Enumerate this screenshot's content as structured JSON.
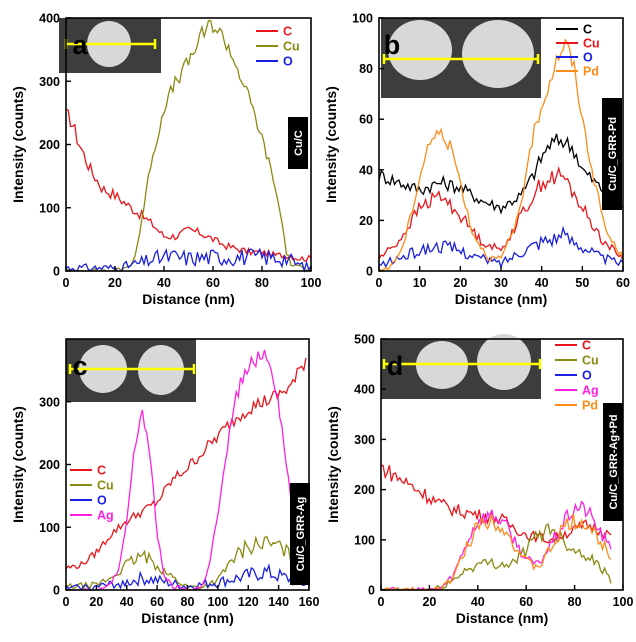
{
  "chart_data": [
    {
      "type": "line",
      "panel_label": "a",
      "side_label": "Cu/C",
      "xlabel": "Distance (nm)",
      "ylabel": "Intensity (counts)",
      "xlim": [
        0,
        100
      ],
      "ylim": [
        0,
        400
      ],
      "xticks": [
        0,
        20,
        40,
        60,
        80,
        100
      ],
      "yticks": [
        0,
        100,
        200,
        300,
        400
      ],
      "legend_position": "top-right",
      "colors": {
        "C": "#e8161b",
        "Cu": "#8a8a12",
        "O": "#1a20e0"
      },
      "series": [
        {
          "name": "C",
          "x": [
            0,
            2,
            5,
            10,
            15,
            20,
            25,
            30,
            35,
            40,
            45,
            50,
            55,
            60,
            65,
            70,
            75,
            80,
            85,
            90,
            95,
            100
          ],
          "values": [
            245,
            240,
            205,
            160,
            130,
            120,
            105,
            90,
            75,
            55,
            55,
            65,
            60,
            50,
            40,
            35,
            30,
            30,
            25,
            25,
            20,
            20
          ]
        },
        {
          "name": "Cu",
          "x": [
            0,
            10,
            20,
            25,
            28,
            30,
            33,
            35,
            38,
            40,
            45,
            50,
            55,
            58,
            60,
            65,
            70,
            75,
            80,
            85,
            88,
            90,
            92,
            95,
            100
          ],
          "values": [
            0,
            0,
            0,
            5,
            20,
            60,
            130,
            180,
            220,
            260,
            300,
            330,
            370,
            385,
            390,
            365,
            320,
            270,
            210,
            140,
            80,
            30,
            10,
            5,
            5
          ]
        },
        {
          "name": "O",
          "x": [
            0,
            10,
            20,
            25,
            30,
            35,
            40,
            45,
            50,
            60,
            70,
            80,
            90,
            95,
            100
          ],
          "values": [
            5,
            5,
            5,
            8,
            12,
            18,
            22,
            22,
            20,
            22,
            22,
            22,
            20,
            10,
            5
          ]
        }
      ]
    },
    {
      "type": "line",
      "panel_label": "b",
      "side_label": "Cu/C_GRR-Pd",
      "xlabel": "Distance (nm)",
      "ylabel": "Intensity (counts)",
      "xlim": [
        0,
        60
      ],
      "ylim": [
        0,
        100
      ],
      "xticks": [
        0,
        10,
        20,
        30,
        40,
        50,
        60
      ],
      "yticks": [
        0,
        20,
        40,
        60,
        80,
        100
      ],
      "legend_position": "top-right",
      "colors": {
        "C": "#000000",
        "Cu": "#e8161b",
        "O": "#1a20e0",
        "Pd": "#ff8c1a"
      },
      "series": [
        {
          "name": "C",
          "x": [
            0,
            5,
            10,
            15,
            20,
            25,
            30,
            35,
            38,
            40,
            42,
            45,
            48,
            50,
            55,
            60
          ],
          "values": [
            38,
            35,
            32,
            35,
            33,
            28,
            25,
            30,
            38,
            45,
            50,
            52,
            48,
            40,
            32,
            25
          ]
        },
        {
          "name": "Cu",
          "x": [
            0,
            5,
            10,
            15,
            20,
            25,
            30,
            35,
            40,
            45,
            50,
            55,
            60
          ],
          "values": [
            5,
            12,
            25,
            30,
            22,
            12,
            8,
            22,
            35,
            38,
            25,
            12,
            5
          ]
        },
        {
          "name": "O",
          "x": [
            0,
            5,
            10,
            15,
            20,
            25,
            30,
            35,
            40,
            45,
            50,
            55,
            60
          ],
          "values": [
            2,
            5,
            8,
            10,
            8,
            5,
            3,
            8,
            12,
            14,
            10,
            5,
            3
          ]
        },
        {
          "name": "Pd",
          "x": [
            0,
            3,
            6,
            9,
            12,
            15,
            18,
            20,
            23,
            27,
            30,
            33,
            36,
            38,
            40,
            42,
            44,
            46,
            48,
            50,
            53,
            56,
            60
          ],
          "values": [
            0,
            2,
            10,
            30,
            50,
            55,
            48,
            35,
            15,
            5,
            5,
            15,
            35,
            55,
            65,
            75,
            85,
            90,
            80,
            60,
            35,
            15,
            5
          ]
        }
      ]
    },
    {
      "type": "line",
      "panel_label": "c",
      "side_label": "Cu/C_GRR-Ag",
      "xlabel": "Distance (nm)",
      "ylabel": "Intensity (counts)",
      "xlim": [
        0,
        160
      ],
      "ylim": [
        0,
        400
      ],
      "xticks": [
        0,
        20,
        40,
        60,
        80,
        100,
        120,
        140,
        160
      ],
      "yticks": [
        0,
        100,
        200,
        300
      ],
      "legend_position": "center-left",
      "colors": {
        "C": "#e8161b",
        "Cu": "#8a8a12",
        "O": "#1a20e0",
        "Ag": "#ff20e0"
      },
      "series": [
        {
          "name": "C",
          "x": [
            0,
            10,
            20,
            30,
            40,
            50,
            60,
            70,
            80,
            90,
            100,
            110,
            120,
            130,
            140,
            150,
            158
          ],
          "values": [
            35,
            40,
            60,
            90,
            110,
            125,
            140,
            175,
            195,
            220,
            245,
            270,
            290,
            300,
            310,
            330,
            370
          ]
        },
        {
          "name": "Cu",
          "x": [
            0,
            20,
            30,
            40,
            50,
            60,
            70,
            80,
            90,
            100,
            110,
            120,
            130,
            140,
            150,
            158
          ],
          "values": [
            5,
            8,
            20,
            40,
            55,
            40,
            20,
            5,
            5,
            15,
            50,
            70,
            75,
            70,
            50,
            20
          ]
        },
        {
          "name": "O",
          "x": [
            0,
            20,
            40,
            50,
            60,
            80,
            100,
            120,
            130,
            140,
            150,
            158
          ],
          "values": [
            3,
            5,
            12,
            18,
            15,
            5,
            12,
            22,
            28,
            22,
            15,
            8
          ]
        },
        {
          "name": "Ag",
          "x": [
            0,
            25,
            35,
            40,
            45,
            50,
            55,
            60,
            65,
            70,
            80,
            90,
            95,
            100,
            105,
            110,
            115,
            120,
            125,
            130,
            135,
            140,
            145,
            150,
            155,
            158
          ],
          "values": [
            0,
            0,
            30,
            110,
            220,
            290,
            220,
            90,
            20,
            5,
            0,
            5,
            50,
            120,
            200,
            290,
            330,
            350,
            370,
            380,
            360,
            300,
            200,
            120,
            50,
            20
          ]
        }
      ]
    },
    {
      "type": "line",
      "panel_label": "d",
      "side_label": "Cu/C_GRR-Ag+Pd",
      "xlabel": "Distance (nm)",
      "ylabel": "Intensity (counts)",
      "xlim": [
        0,
        100
      ],
      "ylim": [
        0,
        500
      ],
      "xticks": [
        0,
        20,
        40,
        60,
        80,
        100
      ],
      "yticks": [
        0,
        100,
        200,
        300,
        400,
        500
      ],
      "legend_position": "top-right",
      "colors": {
        "C": "#e8161b",
        "Cu": "#8a8a12",
        "O": "#1a20e0",
        "Ag": "#ff20e0",
        "Pd": "#ff8c1a"
      },
      "series": [
        {
          "name": "C",
          "x": [
            0,
            5,
            10,
            15,
            20,
            25,
            30,
            35,
            40,
            45,
            50,
            55,
            60,
            65,
            70,
            75,
            80,
            85,
            90,
            95
          ],
          "values": [
            245,
            230,
            215,
            200,
            185,
            170,
            160,
            155,
            150,
            145,
            140,
            125,
            110,
            105,
            100,
            110,
            120,
            130,
            120,
            110
          ]
        },
        {
          "name": "Cu",
          "x": [
            0,
            10,
            20,
            25,
            30,
            35,
            40,
            45,
            50,
            55,
            60,
            65,
            70,
            75,
            80,
            85,
            90,
            95
          ],
          "values": [
            0,
            0,
            0,
            5,
            20,
            40,
            50,
            55,
            50,
            55,
            80,
            110,
            125,
            100,
            80,
            70,
            50,
            20
          ]
        },
        {
          "name": "Ag",
          "x": [
            0,
            20,
            25,
            30,
            35,
            40,
            45,
            50,
            55,
            60,
            65,
            70,
            75,
            80,
            85,
            90,
            95
          ],
          "values": [
            0,
            0,
            5,
            30,
            90,
            140,
            150,
            140,
            100,
            60,
            50,
            90,
            130,
            165,
            160,
            120,
            80
          ]
        },
        {
          "name": "Pd",
          "x": [
            0,
            20,
            25,
            30,
            35,
            40,
            45,
            50,
            55,
            60,
            65,
            70,
            75,
            80,
            85,
            90,
            95
          ],
          "values": [
            0,
            0,
            5,
            25,
            80,
            130,
            140,
            130,
            90,
            55,
            45,
            80,
            120,
            140,
            130,
            100,
            70
          ]
        }
      ]
    }
  ]
}
